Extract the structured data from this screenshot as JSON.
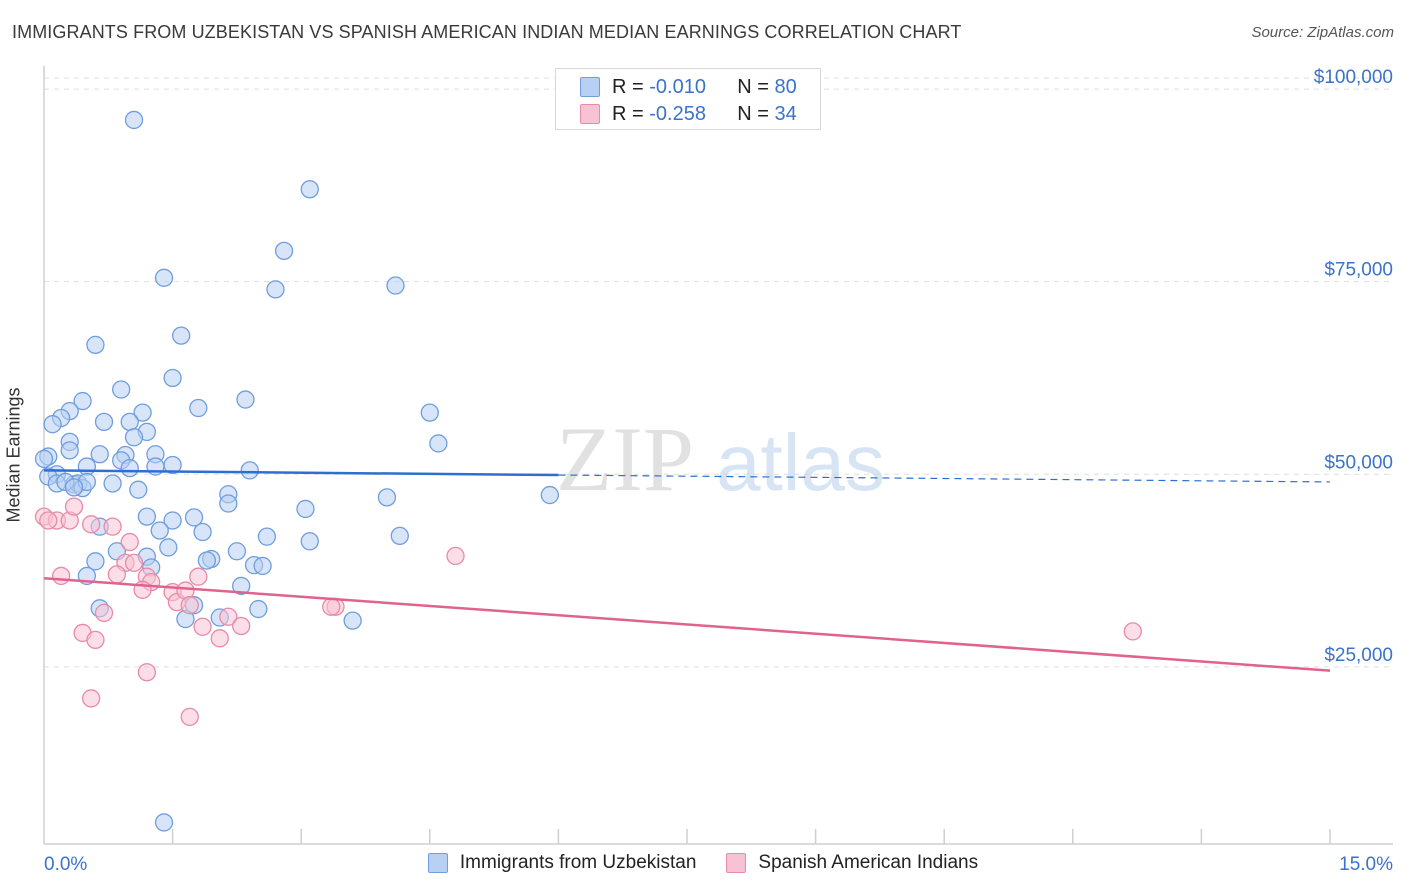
{
  "header": {
    "title": "IMMIGRANTS FROM UZBEKISTAN VS SPANISH AMERICAN INDIAN MEDIAN EARNINGS CORRELATION CHART",
    "source": "Source: ZipAtlas.com"
  },
  "watermark": {
    "zip": "ZIP",
    "atlas": "atlas"
  },
  "legend": {
    "rows": [
      {
        "r_label": "R = ",
        "r_value": "-0.010",
        "n_label": "N = ",
        "n_value": "80"
      },
      {
        "r_label": "R = ",
        "r_value": "-0.258",
        "n_label": "N = ",
        "n_value": "34"
      }
    ]
  },
  "colors": {
    "blue_fill": "#b8d0f2",
    "blue_stroke": "#6f9ede",
    "blue_line": "#2d6fd1",
    "pink_fill": "#f7c2d3",
    "pink_stroke": "#e88aa8",
    "pink_line": "#e0628e",
    "axis_text": "#3a73c9",
    "grid": "#dedede"
  },
  "chart_data": {
    "type": "scatter",
    "title": "IMMIGRANTS FROM UZBEKISTAN VS SPANISH AMERICAN INDIAN MEDIAN EARNINGS CORRELATION CHART",
    "xlabel": "",
    "ylabel": "Median Earnings",
    "xlim": [
      0,
      15
    ],
    "ylim": [
      2000,
      103000
    ],
    "x_tick_labels": [
      "0.0%",
      "15.0%"
    ],
    "y_ticks": [
      25000,
      50000,
      75000,
      100000
    ],
    "y_tick_labels": [
      "$25,000",
      "$50,000",
      "$75,000",
      "$100,000"
    ],
    "grid": true,
    "legend_position": "bottom",
    "series": [
      {
        "name": "Immigrants from Uzbekistan",
        "r": -0.01,
        "n": 80,
        "trend": {
          "x0": 0.0,
          "y0": 50500,
          "x1": 15.0,
          "y1": 49000,
          "solid_until_x": 6.0
        },
        "points": [
          [
            1.05,
            96000
          ],
          [
            3.1,
            87000
          ],
          [
            2.8,
            79000
          ],
          [
            4.1,
            74500
          ],
          [
            2.7,
            74000
          ],
          [
            1.4,
            75500
          ],
          [
            1.6,
            68000
          ],
          [
            0.6,
            66800
          ],
          [
            1.5,
            62500
          ],
          [
            0.9,
            61000
          ],
          [
            0.45,
            59500
          ],
          [
            2.35,
            59700
          ],
          [
            1.8,
            58600
          ],
          [
            4.5,
            58000
          ],
          [
            1.15,
            58000
          ],
          [
            0.3,
            58200
          ],
          [
            0.2,
            57300
          ],
          [
            0.1,
            56500
          ],
          [
            0.7,
            56800
          ],
          [
            1.0,
            56800
          ],
          [
            1.2,
            55500
          ],
          [
            1.05,
            54800
          ],
          [
            0.3,
            54200
          ],
          [
            0.3,
            53100
          ],
          [
            4.6,
            54000
          ],
          [
            0.65,
            52600
          ],
          [
            0.95,
            52500
          ],
          [
            1.3,
            52600
          ],
          [
            0.05,
            52300
          ],
          [
            0.5,
            51000
          ],
          [
            0.9,
            51800
          ],
          [
            1.0,
            50800
          ],
          [
            1.5,
            51200
          ],
          [
            1.3,
            51000
          ],
          [
            2.4,
            50500
          ],
          [
            0.15,
            50000
          ],
          [
            0.35,
            48700
          ],
          [
            0.4,
            48800
          ],
          [
            0.45,
            48200
          ],
          [
            0.5,
            49000
          ],
          [
            0.8,
            48800
          ],
          [
            1.1,
            48000
          ],
          [
            2.15,
            47400
          ],
          [
            4.0,
            47000
          ],
          [
            5.9,
            47300
          ],
          [
            2.15,
            46200
          ],
          [
            3.05,
            45500
          ],
          [
            1.75,
            44400
          ],
          [
            1.5,
            44000
          ],
          [
            0.65,
            43200
          ],
          [
            1.35,
            42700
          ],
          [
            1.85,
            42500
          ],
          [
            4.15,
            42000
          ],
          [
            2.6,
            41900
          ],
          [
            3.1,
            41300
          ],
          [
            0.85,
            40000
          ],
          [
            2.25,
            40000
          ],
          [
            1.2,
            39300
          ],
          [
            1.95,
            39000
          ],
          [
            1.9,
            38800
          ],
          [
            0.6,
            38700
          ],
          [
            1.25,
            37900
          ],
          [
            2.45,
            38200
          ],
          [
            2.55,
            38100
          ],
          [
            0.5,
            36800
          ],
          [
            2.3,
            35500
          ],
          [
            0.65,
            32600
          ],
          [
            1.75,
            33000
          ],
          [
            2.5,
            32500
          ],
          [
            1.65,
            31200
          ],
          [
            2.05,
            31400
          ],
          [
            3.6,
            31000
          ],
          [
            1.4,
            4800
          ],
          [
            0.0,
            52000
          ],
          [
            0.05,
            49700
          ],
          [
            0.15,
            48800
          ],
          [
            0.25,
            49000
          ],
          [
            0.35,
            48300
          ],
          [
            1.2,
            44500
          ],
          [
            1.45,
            40500
          ]
        ]
      },
      {
        "name": "Spanish American Indians",
        "r": -0.258,
        "n": 34,
        "trend": {
          "x0": 0.0,
          "y0": 36500,
          "x1": 15.0,
          "y1": 24500
        },
        "points": [
          [
            0.0,
            44500
          ],
          [
            0.15,
            44000
          ],
          [
            0.3,
            44000
          ],
          [
            0.35,
            45800
          ],
          [
            0.55,
            43500
          ],
          [
            0.8,
            43200
          ],
          [
            0.95,
            38500
          ],
          [
            1.0,
            41200
          ],
          [
            1.2,
            36700
          ],
          [
            0.2,
            36800
          ],
          [
            0.85,
            37000
          ],
          [
            1.05,
            38500
          ],
          [
            1.25,
            36000
          ],
          [
            1.5,
            34700
          ],
          [
            1.55,
            33400
          ],
          [
            1.65,
            34900
          ],
          [
            1.7,
            33000
          ],
          [
            1.8,
            36700
          ],
          [
            1.15,
            35000
          ],
          [
            0.7,
            32000
          ],
          [
            0.45,
            29400
          ],
          [
            0.6,
            28500
          ],
          [
            1.85,
            30200
          ],
          [
            2.05,
            28700
          ],
          [
            2.15,
            31500
          ],
          [
            2.3,
            30300
          ],
          [
            3.4,
            32800
          ],
          [
            3.35,
            32800
          ],
          [
            4.8,
            39400
          ],
          [
            12.7,
            29600
          ],
          [
            1.2,
            24300
          ],
          [
            0.55,
            20900
          ],
          [
            1.7,
            18500
          ],
          [
            0.05,
            44000
          ]
        ]
      }
    ]
  }
}
